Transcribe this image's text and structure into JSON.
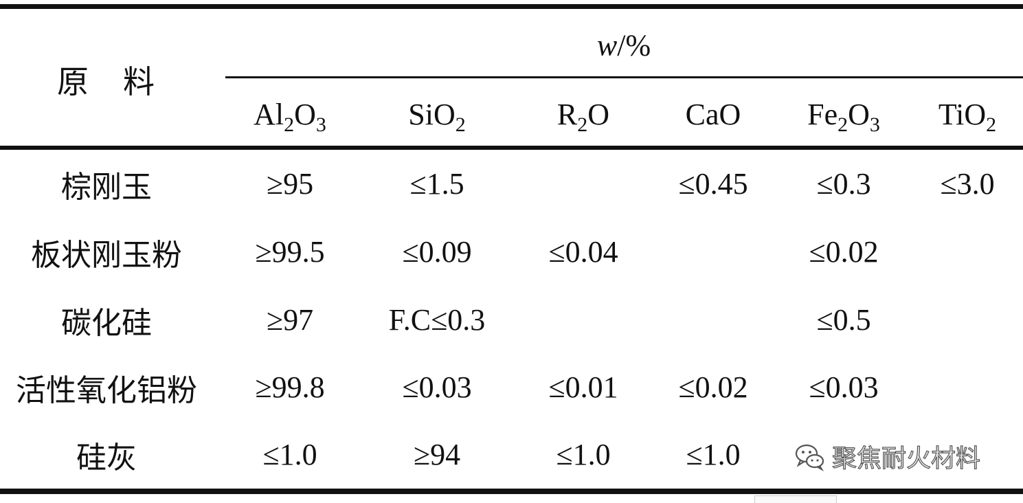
{
  "table": {
    "header": {
      "material": "原　料",
      "unit_var": "w",
      "unit_rest": "/%",
      "columns": [
        {
          "base": "Al",
          "s1": "2",
          "mid": "O",
          "s2": "3"
        },
        {
          "base": "SiO",
          "s1": "2",
          "mid": "",
          "s2": ""
        },
        {
          "base": "R",
          "s1": "2",
          "mid": "O",
          "s2": ""
        },
        {
          "base": "CaO",
          "s1": "",
          "mid": "",
          "s2": ""
        },
        {
          "base": "Fe",
          "s1": "2",
          "mid": "O",
          "s2": "3"
        },
        {
          "base": "TiO",
          "s1": "2",
          "mid": "",
          "s2": ""
        }
      ]
    },
    "rows": [
      {
        "name": "棕刚玉",
        "values": [
          "≥95",
          "≤1.5",
          "",
          "≤0.45",
          "≤0.3",
          "≤3.0"
        ]
      },
      {
        "name": "板状刚玉粉",
        "values": [
          "≥99.5",
          "≤0.09",
          "≤0.04",
          "",
          "≤0.02",
          ""
        ]
      },
      {
        "name": "碳化硅",
        "values": [
          "≥97",
          "F.C≤0.3",
          "",
          "",
          "≤0.5",
          ""
        ]
      },
      {
        "name": "活性氧化铝粉",
        "values": [
          "≥99.8",
          "≤0.03",
          "≤0.01",
          "≤0.02",
          "≤0.03",
          ""
        ]
      },
      {
        "name": "硅灰",
        "values": [
          "≤1.0",
          "≥94",
          "≤1.0",
          "≤1.0",
          "",
          ""
        ]
      }
    ]
  },
  "watermark": {
    "text": "聚焦耐火材料",
    "icon": "wechat-logo-icon"
  }
}
